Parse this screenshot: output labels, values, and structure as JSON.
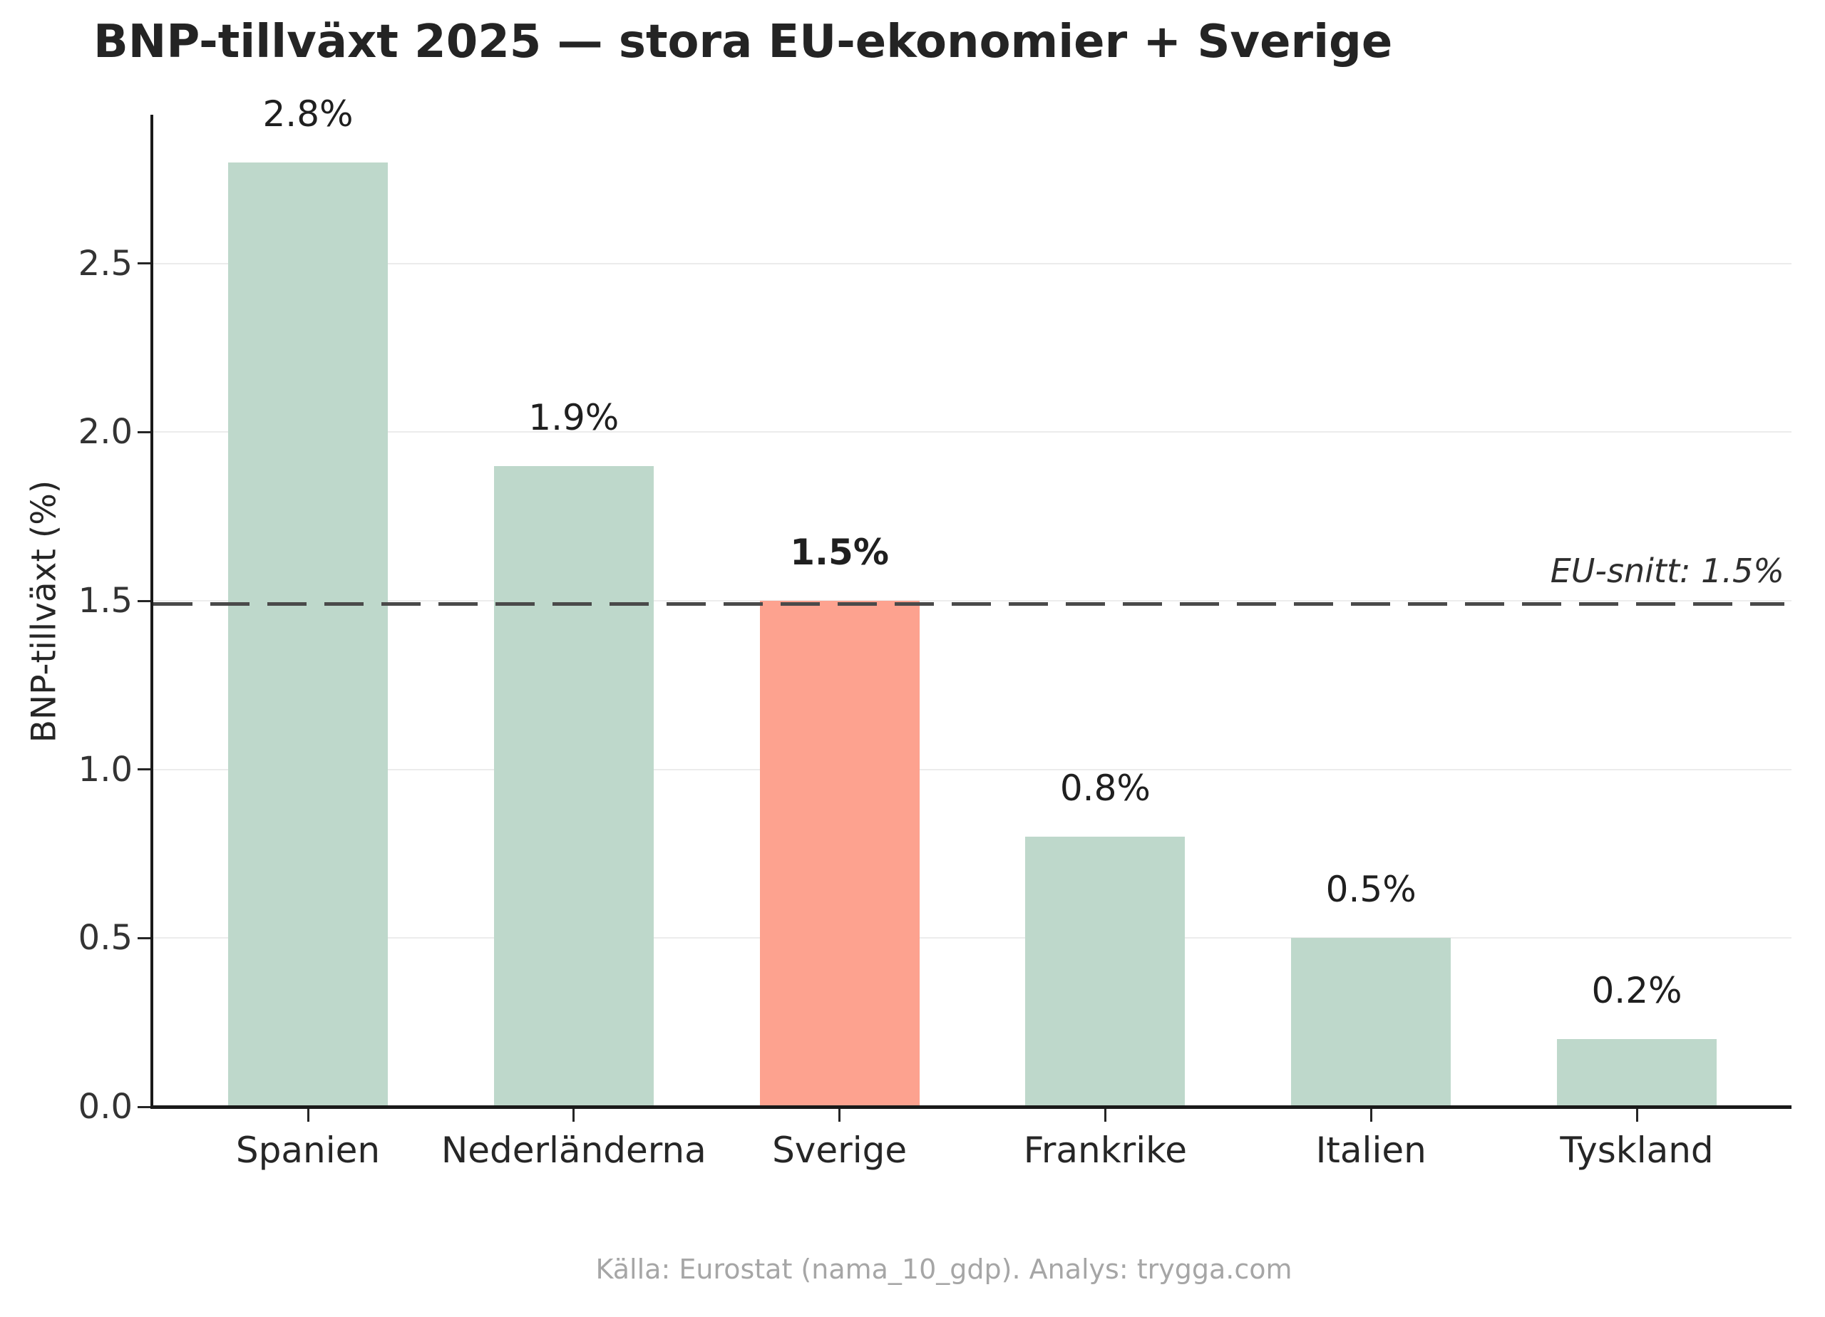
{
  "chart_data": {
    "type": "bar",
    "title": "BNP-tillväxt 2025 — stora EU-ekonomier + Sverige",
    "categories": [
      "Spanien",
      "Nederländerna",
      "Sverige",
      "Frankrike",
      "Italien",
      "Tyskland"
    ],
    "values": [
      2.8,
      1.9,
      1.5,
      0.8,
      0.5,
      0.2
    ],
    "data_labels": [
      "2.8%",
      "1.9%",
      "1.5%",
      "0.8%",
      "0.5%",
      "0.2%"
    ],
    "highlight_index": 2,
    "highlighted_category": "Sverige",
    "xlabel": "",
    "ylabel": "BNP-tillväxt (%)",
    "ylim": [
      0,
      2.94
    ],
    "yticks": [
      0.0,
      0.5,
      1.0,
      1.5,
      2.0,
      2.5
    ],
    "ytick_labels": [
      "0.0",
      "0.5",
      "1.0",
      "1.5",
      "2.0",
      "2.5"
    ],
    "grid": "horizontal",
    "legend": false,
    "reference_line": {
      "value": 1.5,
      "label": "EU-snitt: 1.5%",
      "style": "dashed"
    },
    "footer": "Källa: Eurostat (nama_10_gdp). Analys: trygga.com",
    "colors": {
      "bar": "#bed8cb",
      "highlight_bar": "#fda28f",
      "reference_line": "#4a4a4a",
      "grid": "#ececec",
      "title": "#242424",
      "footer": "#a6a6a6"
    }
  }
}
